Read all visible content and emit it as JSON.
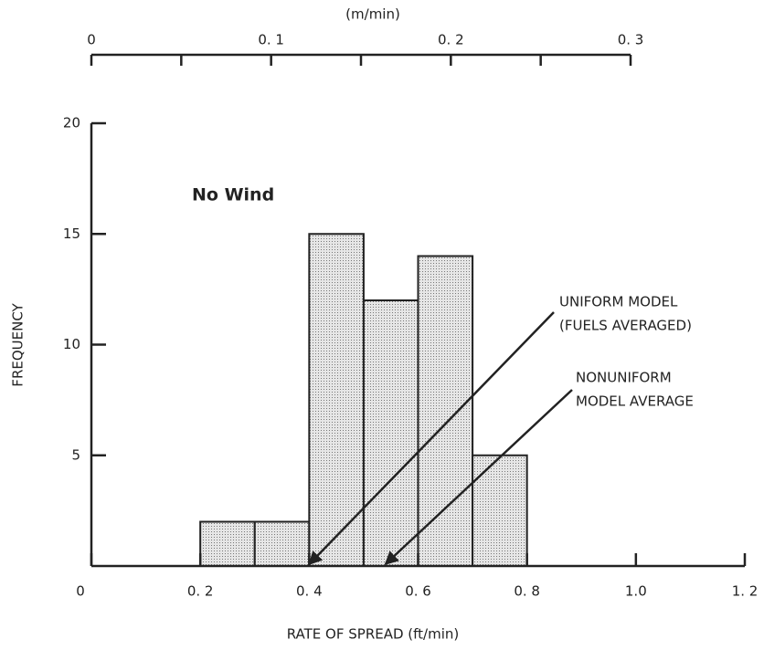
{
  "chart_data": {
    "type": "histogram",
    "title": "No Wind",
    "xlabel": "RATE OF SPREAD (ft/min)",
    "ylabel": "FREQUENCY",
    "x2label": "(m/min)",
    "bins": [
      0.2,
      0.3,
      0.4,
      0.5,
      0.6,
      0.7,
      0.8
    ],
    "counts": [
      2,
      2,
      15,
      12,
      14,
      5
    ],
    "color": "#d9d9d9",
    "xlim": [
      0,
      1.2
    ],
    "xticks": [
      0,
      {
        "value": 0.2,
        "label": "0. 2"
      },
      {
        "value": 0.4,
        "label": "0. 4"
      },
      {
        "value": 0.6,
        "label": "0. 6"
      },
      {
        "value": 0.8,
        "label": "0. 8"
      },
      {
        "value": 1,
        "label": "1.0"
      },
      {
        "value": 1.2,
        "label": "1. 2"
      }
    ],
    "ylim": [
      0,
      20
    ],
    "yticks": [
      5,
      10,
      15,
      20
    ],
    "x2lim": [
      0,
      0.3
    ],
    "x2ticks": [
      0,
      {
        "value": 0.1,
        "label": "0. 1"
      },
      {
        "value": 0.2,
        "label": "0. 2"
      },
      {
        "value": 0.3,
        "label": "0. 3"
      }
    ],
    "x2minor": [
      0.05,
      0.15,
      0.25
    ],
    "annotations": [
      {
        "lines": [
          "UNIFORM MODEL",
          "(FUELS AVERAGED)"
        ],
        "x": 0.4
      },
      {
        "lines": [
          "NONUNIFORM",
          "MODEL AVERAGE"
        ],
        "x": 0.54
      }
    ]
  }
}
